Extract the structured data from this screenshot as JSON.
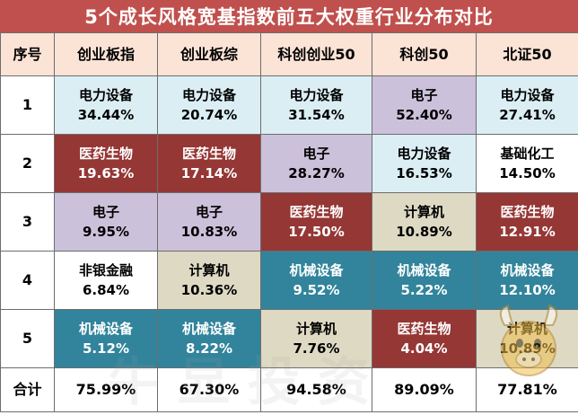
{
  "title": "5个成长风格宽基指数前五大权重行业分布对比",
  "headers": [
    "序号",
    "创业板指",
    "创业板综",
    "科创创业50",
    "科创50",
    "北证50"
  ],
  "rows": [
    {
      "index": "1",
      "cells": [
        {
          "name": "电力设备",
          "pct": "34.44%",
          "color": "blue"
        },
        {
          "name": "电力设备",
          "pct": "20.74%",
          "color": "blue"
        },
        {
          "name": "电力设备",
          "pct": "31.54%",
          "color": "blue"
        },
        {
          "name": "电子",
          "pct": "52.40%",
          "color": "purple"
        },
        {
          "name": "电力设备",
          "pct": "27.41%",
          "color": "blue"
        }
      ]
    },
    {
      "index": "2",
      "cells": [
        {
          "name": "医药生物",
          "pct": "19.63%",
          "color": "red"
        },
        {
          "name": "医药生物",
          "pct": "17.14%",
          "color": "red"
        },
        {
          "name": "电子",
          "pct": "28.27%",
          "color": "purple"
        },
        {
          "name": "电力设备",
          "pct": "16.53%",
          "color": "blue"
        },
        {
          "name": "基础化工",
          "pct": "14.50%",
          "color": "white"
        }
      ]
    },
    {
      "index": "3",
      "cells": [
        {
          "name": "电子",
          "pct": "9.95%",
          "color": "purple"
        },
        {
          "name": "电子",
          "pct": "10.83%",
          "color": "purple"
        },
        {
          "name": "医药生物",
          "pct": "17.50%",
          "color": "red"
        },
        {
          "name": "计算机",
          "pct": "10.89%",
          "color": "tan"
        },
        {
          "name": "医药生物",
          "pct": "12.91%",
          "color": "red"
        }
      ]
    },
    {
      "index": "4",
      "cells": [
        {
          "name": "非银金融",
          "pct": "6.84%",
          "color": "white"
        },
        {
          "name": "计算机",
          "pct": "10.36%",
          "color": "tan"
        },
        {
          "name": "机械设备",
          "pct": "9.52%",
          "color": "teal"
        },
        {
          "name": "机械设备",
          "pct": "5.22%",
          "color": "teal"
        },
        {
          "name": "机械设备",
          "pct": "12.10%",
          "color": "teal"
        }
      ]
    },
    {
      "index": "5",
      "cells": [
        {
          "name": "机械设备",
          "pct": "5.12%",
          "color": "teal"
        },
        {
          "name": "机械设备",
          "pct": "8.22%",
          "color": "teal"
        },
        {
          "name": "计算机",
          "pct": "7.76%",
          "color": "tan"
        },
        {
          "name": "医药生物",
          "pct": "4.04%",
          "color": "red"
        },
        {
          "name": "计算机",
          "pct": "10.89%",
          "color": "tan"
        }
      ]
    }
  ],
  "total": {
    "label": "合计",
    "values": [
      "75.99%",
      "67.30%",
      "94.58%",
      "89.09%",
      "77.81%"
    ]
  },
  "watermark": "牛显投资",
  "colors": {
    "title_bg": "#c0504d",
    "header_bg": "#fbe3d6",
    "blue": "#dbeef4",
    "red": "#953735",
    "purple": "#ccc1da",
    "tan": "#ddd9c3",
    "teal": "#31849b",
    "white": "#ffffff"
  },
  "icons": [
    "cow-mascot-icon"
  ]
}
